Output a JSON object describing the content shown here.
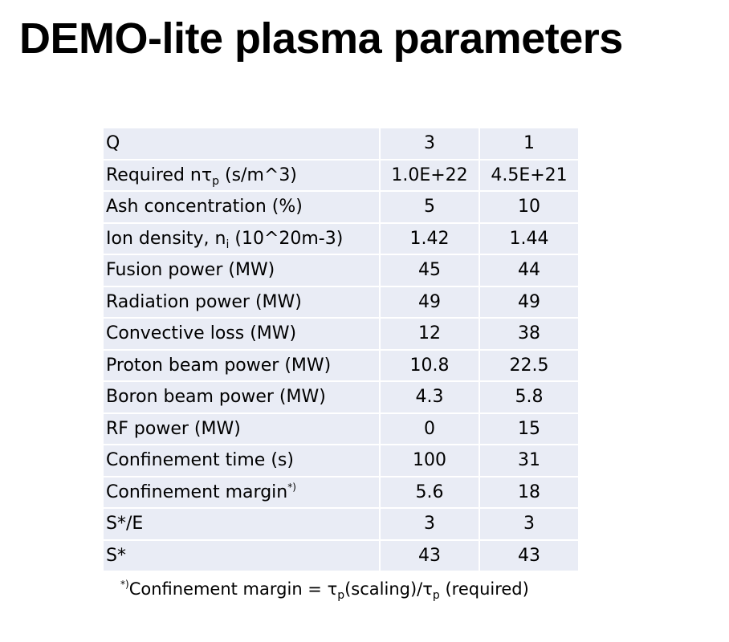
{
  "title": "DEMO-lite plasma parameters",
  "table": {
    "rows": [
      {
        "label": "Q",
        "q3": "3",
        "q1": "1"
      },
      {
        "label_prefix": "Required  nτ",
        "label_sub": "p",
        "label_suffix": " (s/m^3)",
        "q3": "1.0E+22",
        "q1": "4.5E+21"
      },
      {
        "label": "Ash concentration (%)",
        "q3": "5",
        "q1": "10"
      },
      {
        "label_prefix": "Ion density, n",
        "label_sub": "i",
        "label_suffix": " (10^20m-3)",
        "q3": "1.42",
        "q1": "1.44"
      },
      {
        "label": "Fusion power (MW)",
        "q3": "45",
        "q1": "44"
      },
      {
        "label": "Radiation power (MW)",
        "q3": "49",
        "q1": "49"
      },
      {
        "label": "Convective loss (MW)",
        "q3": "12",
        "q1": "38"
      },
      {
        "label": "Proton beam power (MW)",
        "q3": "10.8",
        "q1": "22.5"
      },
      {
        "label": "Boron beam power (MW)",
        "q3": "4.3",
        "q1": "5.8"
      },
      {
        "label": "RF power (MW)",
        "q3": "0",
        "q1": "15"
      },
      {
        "label": "Confinement time (s)",
        "q3": "100",
        "q1": "31"
      },
      {
        "label_prefix": "Confinement margin",
        "label_sup": "*)",
        "q3": "5.6",
        "q1": "18"
      },
      {
        "label": "S*/E",
        "q3": "3",
        "q1": "3"
      },
      {
        "label": "S*",
        "q3": "43",
        "q1": "43"
      }
    ]
  },
  "footnote": {
    "marker": "*)",
    "text_a": "Confinement margin = τ",
    "sub_a": "p",
    "text_b": "(scaling)/τ",
    "sub_b": "p",
    "text_c": " (required)"
  }
}
